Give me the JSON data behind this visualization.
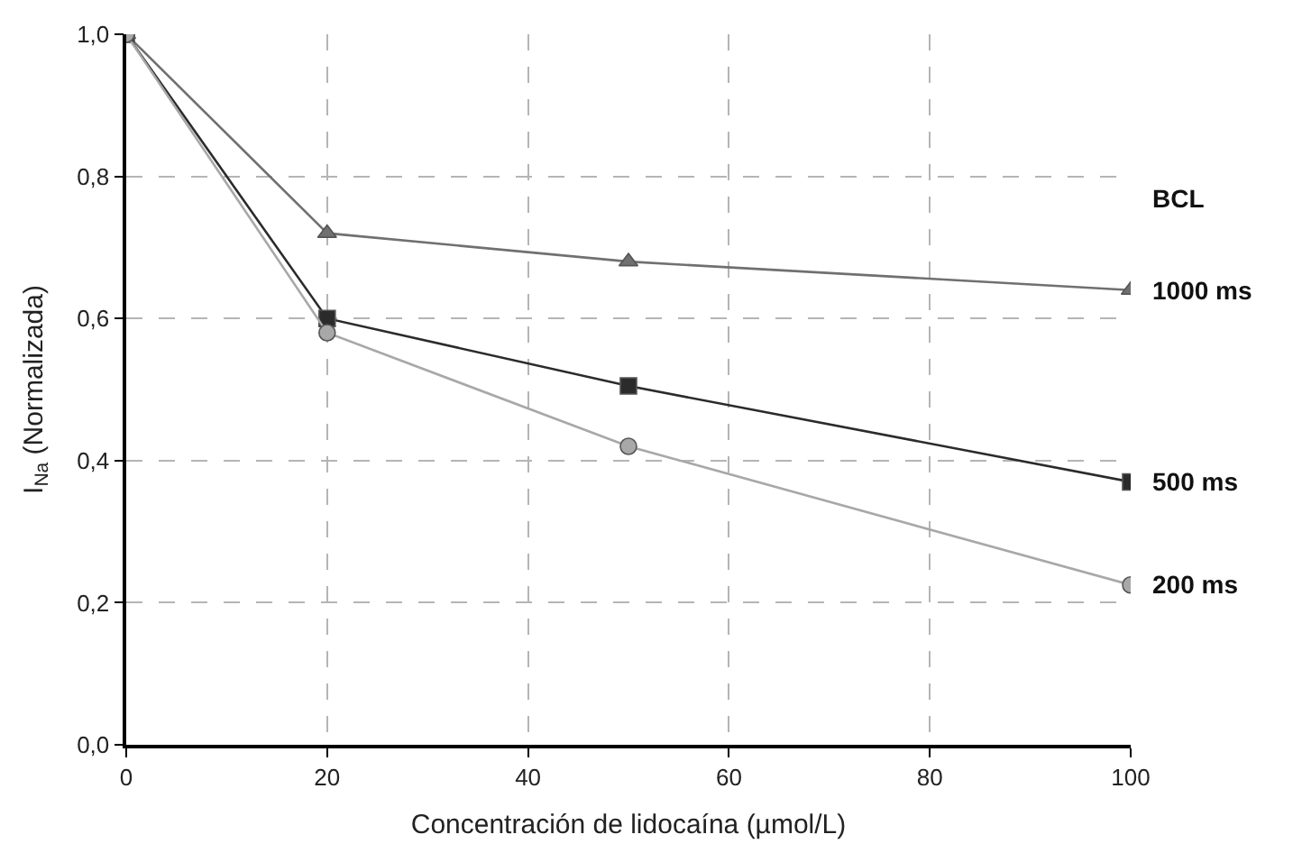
{
  "chart_data": {
    "type": "line",
    "xlabel": "Concentración de lidocaína (µmol/L)",
    "ylabel": "I$_{Na}$ (Normalizada)",
    "legend_title": "BCL",
    "x": [
      0,
      20,
      50,
      100
    ],
    "series": [
      {
        "name": "1000 ms",
        "color": "#707070",
        "marker": "triangle",
        "values": [
          1.0,
          0.72,
          0.68,
          0.64
        ]
      },
      {
        "name": "500 ms",
        "color": "#2b2b2b",
        "marker": "square",
        "values": [
          1.0,
          0.6,
          0.505,
          0.37
        ]
      },
      {
        "name": "200 ms",
        "color": "#a8a8a8",
        "marker": "circle",
        "values": [
          1.0,
          0.58,
          0.42,
          0.225
        ]
      }
    ],
    "xlim": [
      0,
      100
    ],
    "xticks": [
      0,
      20,
      40,
      60,
      80,
      100
    ],
    "ylim": [
      0,
      1
    ],
    "yticks": [
      {
        "value": 0,
        "label": "0,0"
      },
      {
        "value": 0.2,
        "label": "0,2"
      },
      {
        "value": 0.4,
        "label": "0,4"
      },
      {
        "value": 0.6,
        "label": "0,6"
      },
      {
        "value": 0.8,
        "label": "0,8"
      },
      {
        "value": 1,
        "label": "1,0"
      }
    ],
    "grid": true,
    "legend": false
  }
}
